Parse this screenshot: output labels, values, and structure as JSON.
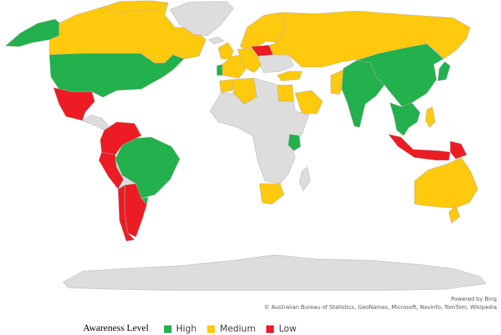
{
  "attribution": {
    "powered_by": "Powered by Bing",
    "credits": "© Australian Bureau of Statistics, GeoNames, Microsoft, Navinfo, TomTom, Wikipedia"
  },
  "legend": {
    "title": "Awareness Level",
    "items": [
      {
        "label": "High",
        "color": "#22b14c"
      },
      {
        "label": "Medium",
        "color": "#ffc90e"
      },
      {
        "label": "Low",
        "color": "#ed1c24"
      }
    ]
  },
  "colors": {
    "no_data": "#dddddd",
    "border": "#b0b0b0",
    "high": "#22b14c",
    "medium": "#ffc90e",
    "low": "#ed1c24"
  },
  "chart_data": {
    "type": "choropleth",
    "regions": [
      {
        "name": "Alaska",
        "level": "High"
      },
      {
        "name": "Canada",
        "level": "Medium"
      },
      {
        "name": "United States",
        "level": "High"
      },
      {
        "name": "Mexico",
        "level": "Low"
      },
      {
        "name": "Central America",
        "level": "None"
      },
      {
        "name": "Greenland",
        "level": "None"
      },
      {
        "name": "Arctic Islands",
        "level": "Medium"
      },
      {
        "name": "Brazil",
        "level": "High"
      },
      {
        "name": "Uruguay",
        "level": "High"
      },
      {
        "name": "Northern South America",
        "level": "Low"
      },
      {
        "name": "Peru",
        "level": "Low"
      },
      {
        "name": "Chile",
        "level": "Low"
      },
      {
        "name": "Argentina",
        "level": "Low"
      },
      {
        "name": "Bolivia/Paraguay",
        "level": "None"
      },
      {
        "name": "Iceland",
        "level": "None"
      },
      {
        "name": "Norway/Sweden/Finland",
        "level": "Medium"
      },
      {
        "name": "UK/Ireland",
        "level": "Medium"
      },
      {
        "name": "Portugal",
        "level": "High"
      },
      {
        "name": "Spain/France",
        "level": "Medium"
      },
      {
        "name": "Central Europe",
        "level": "Medium"
      },
      {
        "name": "Poland",
        "level": "Low"
      },
      {
        "name": "Eastern Europe",
        "level": "None"
      },
      {
        "name": "Russia",
        "level": "Medium"
      },
      {
        "name": "Turkey",
        "level": "Medium"
      },
      {
        "name": "Morocco",
        "level": "Medium"
      },
      {
        "name": "Algeria",
        "level": "Medium"
      },
      {
        "name": "Egypt",
        "level": "Medium"
      },
      {
        "name": "Saudi Arabia",
        "level": "Medium"
      },
      {
        "name": "Pakistan",
        "level": "Medium"
      },
      {
        "name": "Africa (other)",
        "level": "None"
      },
      {
        "name": "Kenya",
        "level": "High"
      },
      {
        "name": "South Africa",
        "level": "Medium"
      },
      {
        "name": "Madagascar",
        "level": "None"
      },
      {
        "name": "India",
        "level": "High"
      },
      {
        "name": "China",
        "level": "High"
      },
      {
        "name": "Japan",
        "level": "High"
      },
      {
        "name": "Mainland Southeast Asia",
        "level": "High"
      },
      {
        "name": "Philippines",
        "level": "Medium"
      },
      {
        "name": "Indonesia",
        "level": "Low"
      },
      {
        "name": "Papua New Guinea",
        "level": "Low"
      },
      {
        "name": "Australia",
        "level": "Medium"
      },
      {
        "name": "New Zealand",
        "level": "Medium"
      },
      {
        "name": "Antarctica",
        "level": "None"
      }
    ]
  }
}
